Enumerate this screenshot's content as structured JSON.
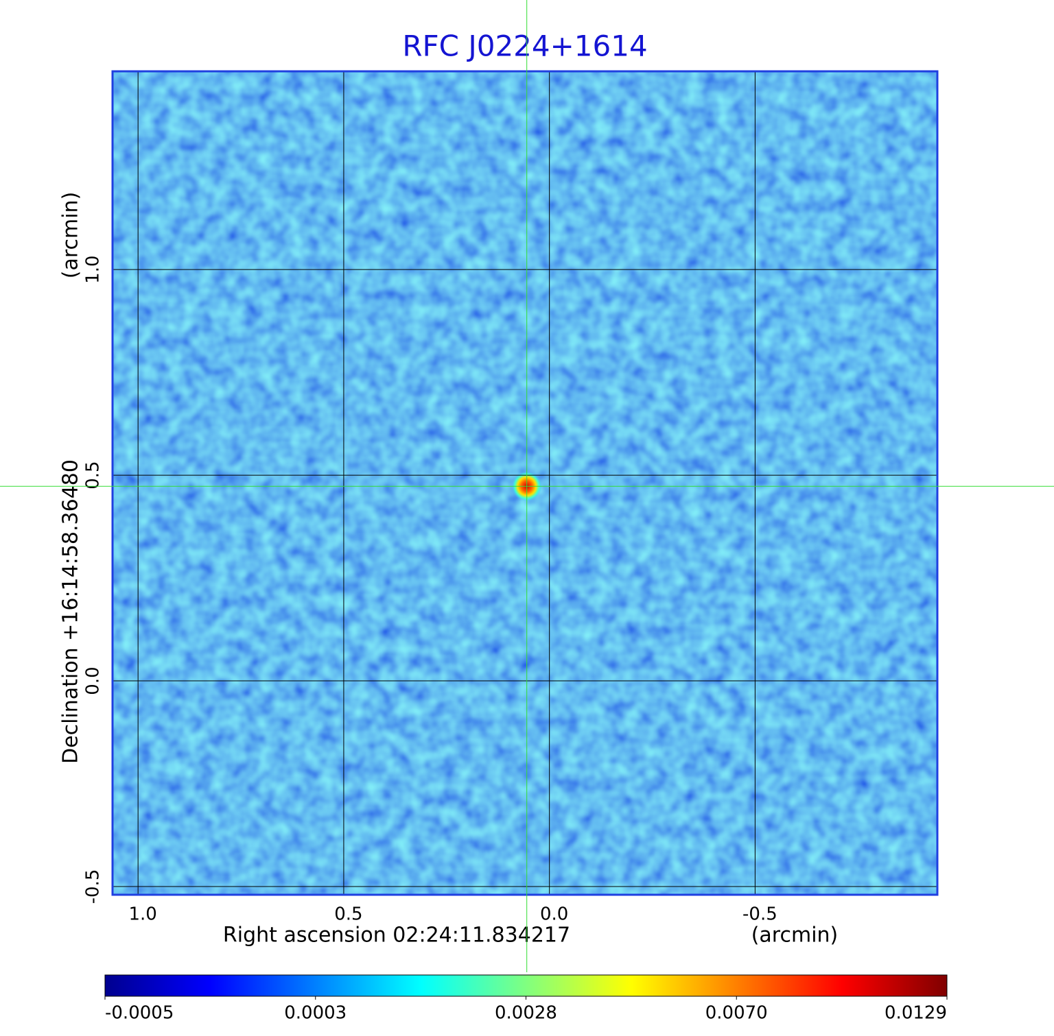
{
  "chart_data": {
    "type": "image",
    "title": "RFC J0224+1614",
    "xlabel": "Right ascension  02:24:11.834217",
    "xunit": "(arcmin)",
    "ylabel": "Declination  +16:14:58.36480",
    "yunit": "(arcmin)",
    "xlim": [
      1.062,
      -0.943
    ],
    "ylim": [
      -0.52,
      1.482
    ],
    "xticks": [
      {
        "value": 1,
        "label": "1.0"
      },
      0.5,
      {
        "value": 0,
        "label": "0.0"
      },
      -0.5
    ],
    "yticks": [
      {
        "value": -0.5,
        "label": "-0.5"
      },
      {
        "value": 0,
        "label": "0.0"
      },
      0.5,
      {
        "value": 1,
        "label": "1.0"
      }
    ],
    "grid": true,
    "grid_color": "#000000",
    "frame_color": "#1f3fe0",
    "title_color": "#1414d2",
    "crosshair": {
      "x": 0.055,
      "y": 0.473,
      "color": "#33dd33"
    },
    "colorbar": {
      "ticks": [
        -0.0005,
        0.0003,
        0.0028,
        {
          "value": 0.007,
          "label": "0.0070"
        },
        0.0129
      ],
      "colors": [
        "#00008f",
        "#0000ff",
        "#0080ff",
        "#00ffff",
        "#80ff80",
        "#ffff00",
        "#ff8000",
        "#ff0000",
        "#800000"
      ]
    }
  }
}
